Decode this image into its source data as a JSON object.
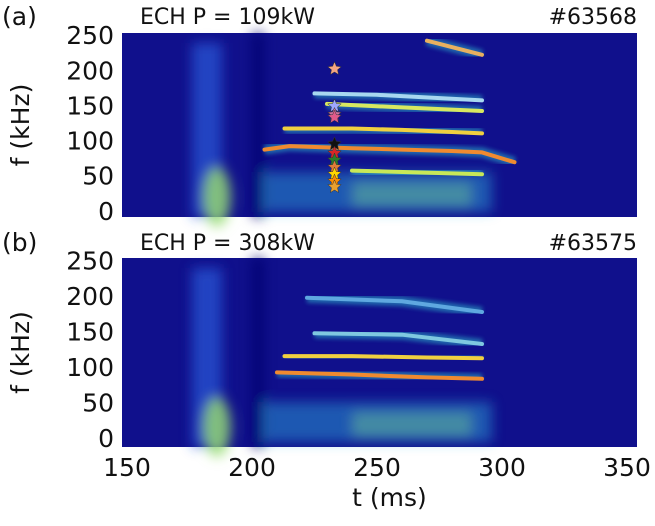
{
  "chart_data": [
    {
      "type": "spectrogram",
      "panel_label": "(a)",
      "title": "ECH P = 109kW",
      "shot": "#63568",
      "ylabel": "f (kHz)",
      "xlim": [
        148,
        354
      ],
      "ylim": [
        -6,
        256
      ],
      "yticks": [
        0,
        50,
        100,
        150,
        200,
        250
      ],
      "grid": false,
      "series": [
        {
          "x": [
            270,
            292
          ],
          "values": [
            245,
            225
          ],
          "color": "#e8b060"
        },
        {
          "x": [
            225,
            250,
            292
          ],
          "values": [
            170,
            168,
            160
          ],
          "color": "#a8d8f0"
        },
        {
          "x": [
            230,
            260,
            292
          ],
          "values": [
            155,
            150,
            145
          ],
          "color": "#d8e860"
        },
        {
          "x": [
            213,
            240,
            260,
            280,
            292
          ],
          "values": [
            120,
            120,
            118,
            115,
            113
          ],
          "color": "#f0d040"
        },
        {
          "x": [
            205,
            215,
            240,
            260,
            280,
            292,
            305
          ],
          "values": [
            90,
            95,
            92,
            90,
            88,
            86,
            72
          ],
          "color": "#f08a30"
        },
        {
          "x": [
            240,
            292
          ],
          "values": [
            60,
            55
          ],
          "color": "#c8e858"
        }
      ],
      "stars": {
        "x": [
          233,
          233,
          233,
          233,
          233,
          233,
          233,
          233,
          233,
          233,
          233
        ],
        "values": [
          205,
          152,
          140,
          136,
          98,
          85,
          75,
          65,
          55,
          45,
          37
        ],
        "colors": [
          "#f4a582",
          "#9fa8ff",
          "#d070a0",
          "#e05a8a",
          "#111111",
          "#d62728",
          "#2a7d2a",
          "#e07b39",
          "#ffd700",
          "#ff8c00",
          "#e8a030"
        ]
      }
    },
    {
      "type": "spectrogram",
      "panel_label": "(b)",
      "title": "ECH P = 308kW",
      "shot": "#63575",
      "ylabel": "f (kHz)",
      "xlabel": "t (ms)",
      "xlim": [
        148,
        354
      ],
      "ylim": [
        -10,
        256
      ],
      "yticks": [
        0,
        50,
        100,
        150,
        200,
        250
      ],
      "xticks": [
        150,
        200,
        250,
        300,
        350
      ],
      "grid": false,
      "series": [
        {
          "x": [
            222,
            260,
            292
          ],
          "values": [
            200,
            195,
            180
          ],
          "color": "#5fa8e0"
        },
        {
          "x": [
            225,
            260,
            292
          ],
          "values": [
            150,
            148,
            135
          ],
          "color": "#7fc8e0"
        },
        {
          "x": [
            213,
            240,
            270,
            292
          ],
          "values": [
            118,
            118,
            116,
            115
          ],
          "color": "#f0d040"
        },
        {
          "x": [
            210,
            240,
            270,
            292
          ],
          "values": [
            95,
            92,
            88,
            86
          ],
          "color": "#f08a30"
        }
      ]
    }
  ]
}
